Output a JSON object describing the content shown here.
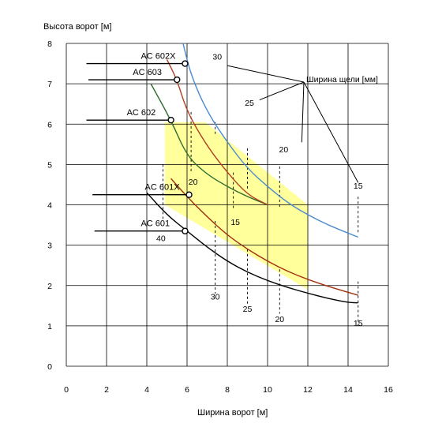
{
  "chart_data": {
    "type": "line",
    "title": "",
    "ylabel": "Высота ворот [м]",
    "xlabel": "Ширина ворот [м]",
    "xlim": [
      0,
      16
    ],
    "ylim": [
      0,
      8
    ],
    "x_ticks": [
      0,
      2,
      4,
      6,
      8,
      10,
      12,
      14,
      16
    ],
    "y_ticks": [
      0,
      1,
      2,
      3,
      4,
      5,
      6,
      7,
      8
    ],
    "grid": true,
    "highlight_region": {
      "color": "#ffff9c",
      "points": [
        [
          4.9,
          6.05
        ],
        [
          6.9,
          6.05
        ],
        [
          12.0,
          4.0
        ],
        [
          12.0,
          1.9
        ],
        [
          4.9,
          4.0
        ]
      ]
    },
    "series": [
      {
        "name": "AC 601",
        "color": "#000000",
        "x": [
          4.0,
          5.0,
          6.0,
          7.0,
          8.0,
          9.0,
          10.0,
          11.0,
          12.0,
          13.0,
          14.0,
          14.5
        ],
        "y": [
          4.3,
          3.75,
          3.35,
          2.95,
          2.6,
          2.33,
          2.12,
          1.95,
          1.81,
          1.68,
          1.58,
          1.57
        ]
      },
      {
        "name": "AC 601X",
        "color": "#a03010",
        "x": [
          5.2,
          6.0,
          7.0,
          8.0,
          9.0,
          10.0,
          11.0,
          12.0,
          13.0,
          14.0,
          14.5
        ],
        "y": [
          4.65,
          4.2,
          3.7,
          3.25,
          2.9,
          2.6,
          2.35,
          2.15,
          1.98,
          1.83,
          1.76
        ]
      },
      {
        "name": "AC 602",
        "color": "#2f6b2f",
        "x": [
          4.2,
          5.2,
          6.0,
          7.0,
          8.0,
          9.0,
          10.0
        ],
        "y": [
          7.0,
          6.1,
          5.2,
          4.75,
          4.45,
          4.2,
          4.0
        ]
      },
      {
        "name": "AC 603",
        "color": "#b04020",
        "x": [
          5.0,
          5.5,
          6.0,
          7.0,
          8.0,
          9.0,
          10.0
        ],
        "y": [
          7.6,
          7.1,
          6.3,
          5.45,
          4.8,
          4.25,
          4.0
        ]
      },
      {
        "name": "AC 602X",
        "color": "#4a8ad0",
        "x": [
          5.8,
          6.2,
          7.0,
          8.0,
          9.0,
          10.0,
          11.0,
          12.0,
          13.0,
          14.0,
          14.5
        ],
        "y": [
          8.0,
          7.2,
          6.3,
          5.55,
          4.9,
          4.45,
          4.05,
          3.75,
          3.5,
          3.3,
          3.2
        ]
      }
    ],
    "model_markers": [
      {
        "label": "AC 602X",
        "x": 5.9,
        "y": 7.5,
        "line_from_x": 1.0
      },
      {
        "label": "AC 603",
        "x": 5.5,
        "y": 7.1,
        "line_from_x": 1.1
      },
      {
        "label": "AC 602",
        "x": 5.2,
        "y": 6.1,
        "line_from_x": 1.0
      },
      {
        "label": "AC 601X",
        "x": 6.1,
        "y": 4.25,
        "line_from_x": 1.3
      },
      {
        "label": "AC 601",
        "x": 5.9,
        "y": 3.35,
        "line_from_x": 1.4
      }
    ],
    "slit_width_legend": "Ширина щели [мм]",
    "slit_width_lines": [
      {
        "label": "30",
        "x": 7.4,
        "y_top": 6.05,
        "y_bottom": 5.7,
        "label_x": 7.5,
        "label_y": 7.6
      },
      {
        "label": "25",
        "x": 9.0,
        "y_top": 5.4,
        "y_bottom": 4.4,
        "label_x": 9.1,
        "label_y": 6.45
      },
      {
        "label": "20",
        "x": 10.6,
        "y_top": 4.95,
        "y_bottom": 3.9,
        "label_x": 10.8,
        "label_y": 5.3
      },
      {
        "label": "15",
        "x": 14.5,
        "y_top": 4.2,
        "y_bottom": 3.3,
        "label_x": 14.5,
        "label_y": 4.4
      },
      {
        "label": "20",
        "x": 6.2,
        "y_top": 6.3,
        "y_bottom": 4.8,
        "label_x": 6.3,
        "label_y": 4.5
      },
      {
        "label": "15",
        "x": 8.3,
        "y_top": 4.8,
        "y_bottom": 3.9,
        "label_x": 8.4,
        "label_y": 3.5
      },
      {
        "label": "40",
        "x": 4.8,
        "y_top": 5.0,
        "y_bottom": 3.6,
        "label_x": 4.7,
        "label_y": 3.1
      },
      {
        "label": "30",
        "x": 7.4,
        "y_top": 3.6,
        "y_bottom": 1.8,
        "label_x": 7.4,
        "label_y": 1.65
      },
      {
        "label": "25",
        "x": 9.0,
        "y_top": 2.9,
        "y_bottom": 1.55,
        "label_x": 9.0,
        "label_y": 1.35
      },
      {
        "label": "20",
        "x": 10.6,
        "y_top": 2.4,
        "y_bottom": 1.3,
        "label_x": 10.6,
        "label_y": 1.1
      },
      {
        "label": "15",
        "x": 14.5,
        "y_top": 2.1,
        "y_bottom": 1.0,
        "label_x": 14.5,
        "label_y": 1.0
      }
    ]
  }
}
